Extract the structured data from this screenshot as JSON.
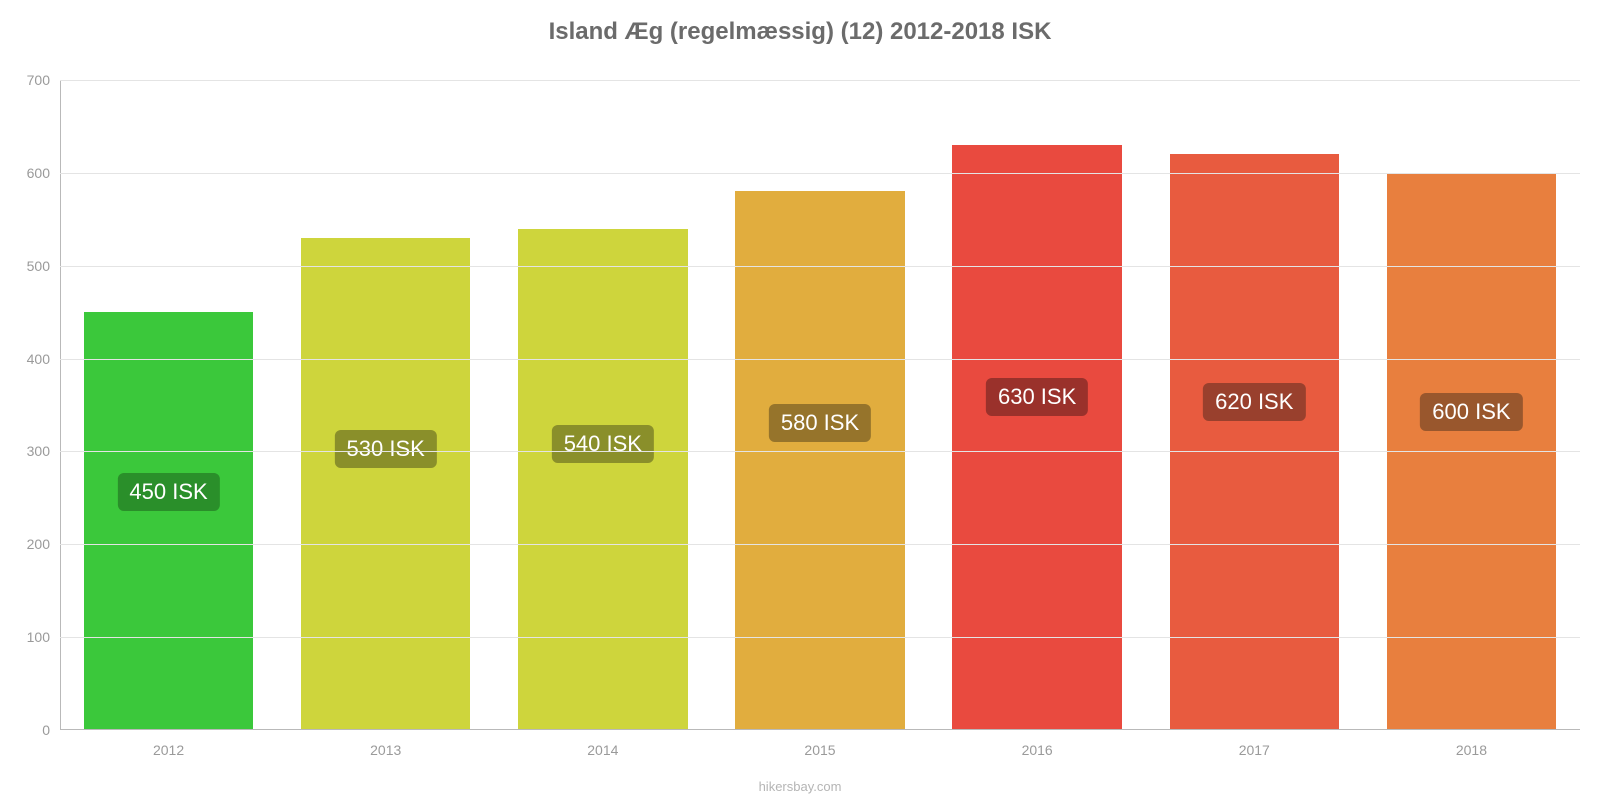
{
  "chart": {
    "type": "bar",
    "title": "Island Æg (regelmæssig) (12) 2012-2018 ISK",
    "title_color": "#6b6b6b",
    "title_fontsize": 24,
    "background_color": "#ffffff",
    "grid_color": "#e4e4e4",
    "axis_color": "#b9b9b9",
    "tick_color": "#9a9a9a",
    "tick_fontsize": 14,
    "label_fontsize": 22,
    "label_text_color": "#ffffff",
    "label_border_radius": 6,
    "ylim": [
      0,
      700
    ],
    "ytick_step": 100,
    "yticks": [
      0,
      100,
      200,
      300,
      400,
      500,
      600,
      700
    ],
    "categories": [
      "2012",
      "2013",
      "2014",
      "2015",
      "2016",
      "2017",
      "2018"
    ],
    "values": [
      450,
      530,
      540,
      580,
      630,
      620,
      600
    ],
    "value_labels": [
      "450 ISK",
      "530 ISK",
      "540 ISK",
      "580 ISK",
      "630 ISK",
      "620 ISK",
      "600 ISK"
    ],
    "bar_colors": [
      "#3bc83b",
      "#ced53c",
      "#ced53c",
      "#e1ad3e",
      "#e94a3f",
      "#e85b3f",
      "#e87f3e"
    ],
    "label_bg_colors": [
      "#2a8f2a",
      "#8a8f2a",
      "#8a8f2a",
      "#96742b",
      "#9a312b",
      "#99402d",
      "#99572d"
    ],
    "bar_width_ratio": 0.78,
    "label_y_ratio": 0.57,
    "attribution": "hikersbay.com",
    "attribution_color": "#b5b5b5"
  }
}
